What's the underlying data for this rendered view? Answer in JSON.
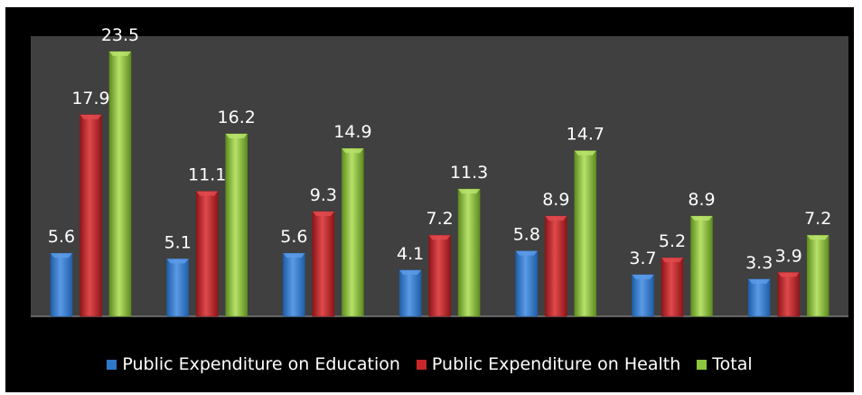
{
  "chart_data": {
    "type": "bar",
    "categories": [
      "",
      "",
      "",
      "",
      "",
      "",
      ""
    ],
    "series": [
      {
        "name": "Public Expenditure on Education",
        "color": "#2f77c8",
        "values": [
          5.6,
          5.1,
          5.6,
          4.1,
          5.8,
          3.7,
          3.3
        ]
      },
      {
        "name": "Public Expenditure on Health",
        "color": "#c8262a",
        "values": [
          17.9,
          11.1,
          9.3,
          7.2,
          8.9,
          5.2,
          3.9
        ]
      },
      {
        "name": "Total",
        "color": "#8dc63f",
        "values": [
          23.5,
          16.2,
          14.9,
          11.3,
          14.7,
          8.9,
          7.2
        ]
      }
    ],
    "data_labels": [
      [
        "5.6",
        "17.9",
        "23.5"
      ],
      [
        "5.1",
        "11.1",
        "16.2"
      ],
      [
        "5.6",
        "9.3",
        "14.9"
      ],
      [
        "4.1",
        "7.2",
        "11.3"
      ],
      [
        "5.8",
        "8.9",
        "14.7"
      ],
      [
        "3.7",
        "5.2",
        "8.9"
      ],
      [
        "3.3",
        "3.9",
        "7.2"
      ]
    ],
    "ylim": [
      0,
      25
    ],
    "grid": false,
    "legend_position": "bottom",
    "plot_background": "#404040",
    "chart_background": "#000000"
  }
}
